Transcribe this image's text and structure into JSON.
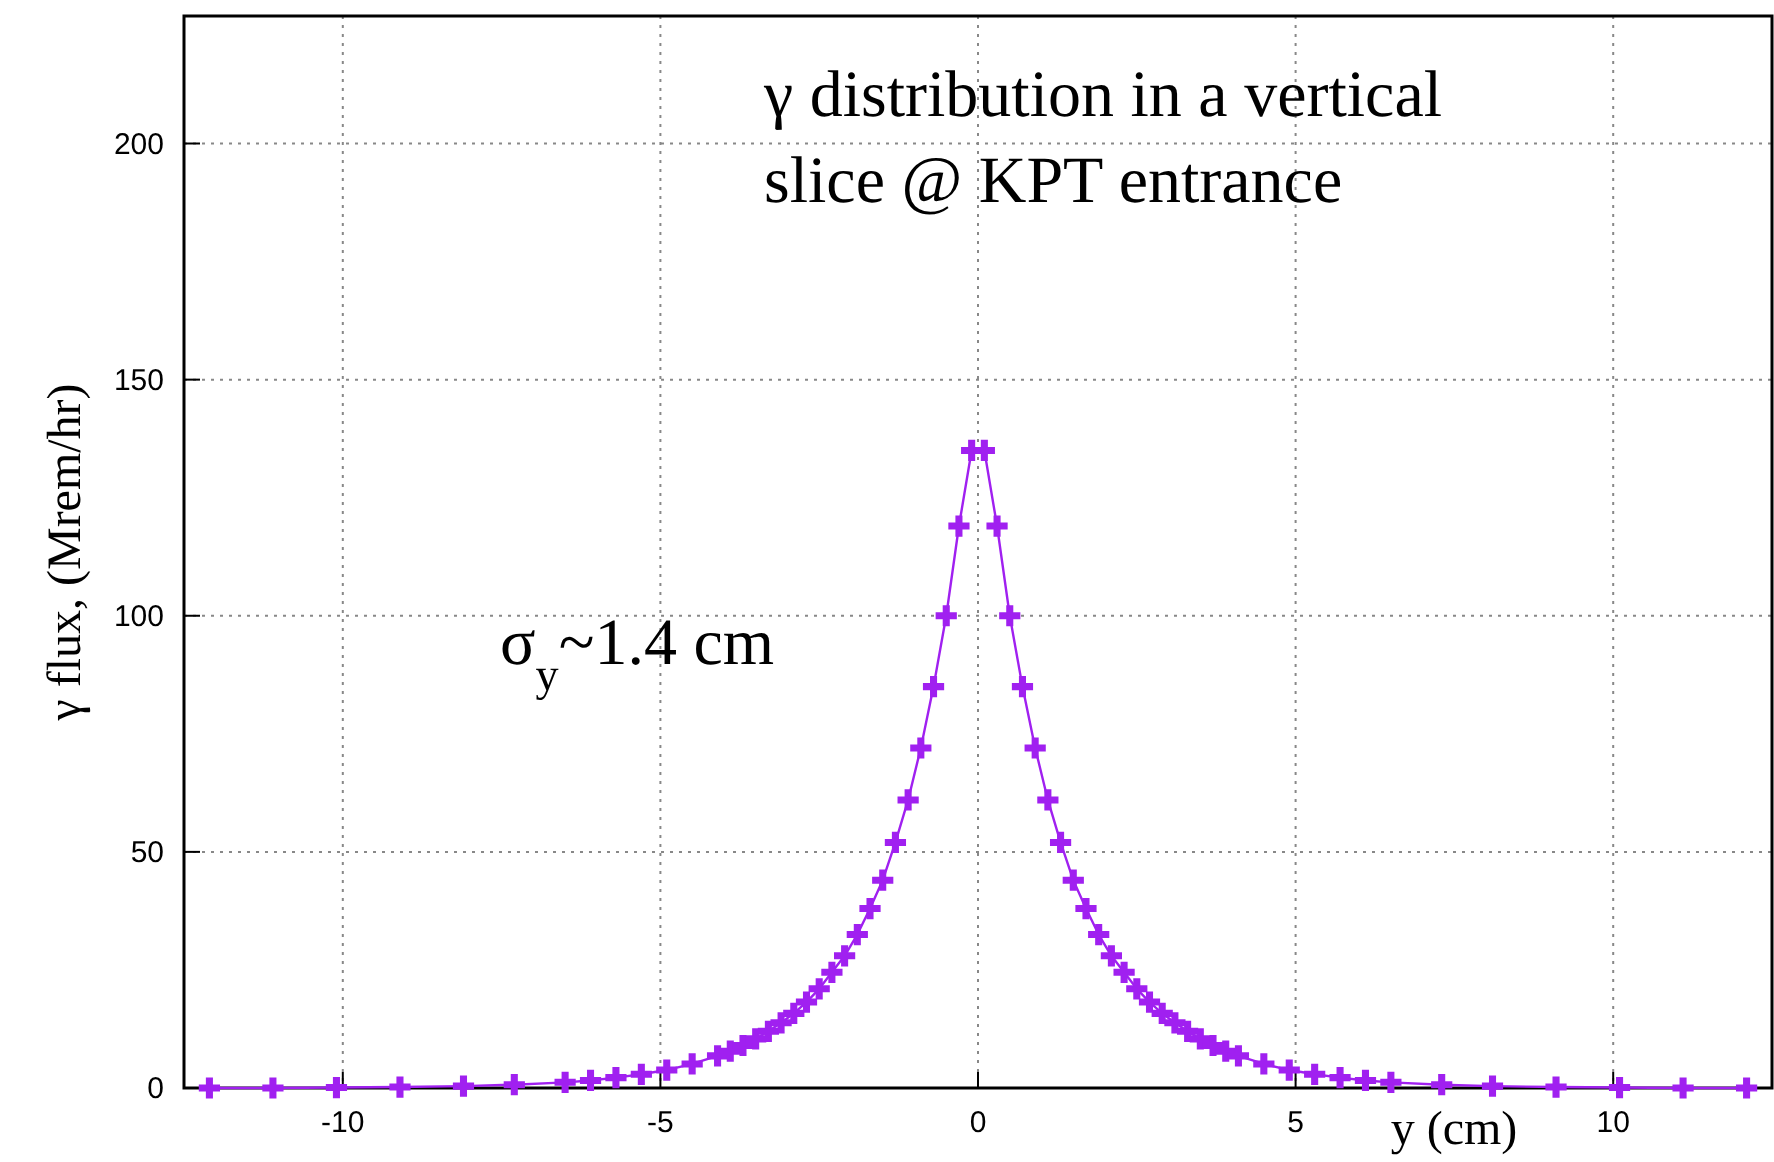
{
  "chart_data": {
    "type": "line",
    "xlabel": "y (cm)",
    "ylabel": "γ flux, (Mrem/hr)",
    "annotations": [
      "γ distribution in a vertical\nslice @ KPT entrance",
      "σ$_{y}$~1.4 cm"
    ],
    "xlim": [
      -12.5,
      12.5
    ],
    "ylim": [
      0,
      227
    ],
    "xticks": [
      -10,
      -5,
      0,
      5,
      10
    ],
    "yticks": [
      0,
      50,
      100,
      150,
      200
    ],
    "grid": true,
    "marker": "cross",
    "line_style": "solid",
    "series": [
      {
        "color": "#a020f0",
        "x": [
          -12.1,
          -11.1,
          -10.1,
          -9.1,
          -8.1,
          -7.3,
          -6.5,
          -6.1,
          -5.7,
          -5.3,
          -4.9,
          -4.5,
          -4.1,
          -3.9,
          -3.7,
          -3.5,
          -3.3,
          -3.1,
          -2.9,
          -2.7,
          -2.5,
          -2.3,
          -2.1,
          -1.9,
          -1.7,
          -1.5,
          -1.3,
          -1.1,
          -0.9,
          -0.7,
          -0.5,
          -0.3,
          -0.1,
          0.1,
          0.3,
          0.5,
          0.7,
          0.9,
          1.1,
          1.3,
          1.5,
          1.7,
          1.9,
          2.1,
          2.3,
          2.5,
          2.7,
          2.9,
          3.1,
          3.3,
          3.5,
          3.7,
          3.9,
          4.1,
          4.5,
          4.9,
          5.3,
          5.7,
          6.1,
          6.5,
          7.3,
          8.1,
          9.1,
          10.1,
          11.1,
          12.1
        ],
        "values": [
          0,
          0,
          0.1,
          0.2,
          0.4,
          0.7,
          1.2,
          1.6,
          2.2,
          2.9,
          3.8,
          5.1,
          6.8,
          7.8,
          9,
          10.4,
          12,
          13.8,
          15.8,
          18.2,
          21,
          24.5,
          28,
          32.5,
          38,
          44,
          52,
          61,
          72,
          85,
          100,
          119,
          135,
          135,
          119,
          100,
          85,
          72,
          61,
          52,
          44,
          38,
          32.5,
          28,
          24.5,
          21,
          18.2,
          15.8,
          13.8,
          12,
          10.4,
          9,
          7.8,
          6.8,
          5.1,
          3.8,
          2.9,
          2.2,
          1.6,
          1.2,
          0.7,
          0.4,
          0.2,
          0.1,
          0,
          0
        ]
      }
    ]
  }
}
